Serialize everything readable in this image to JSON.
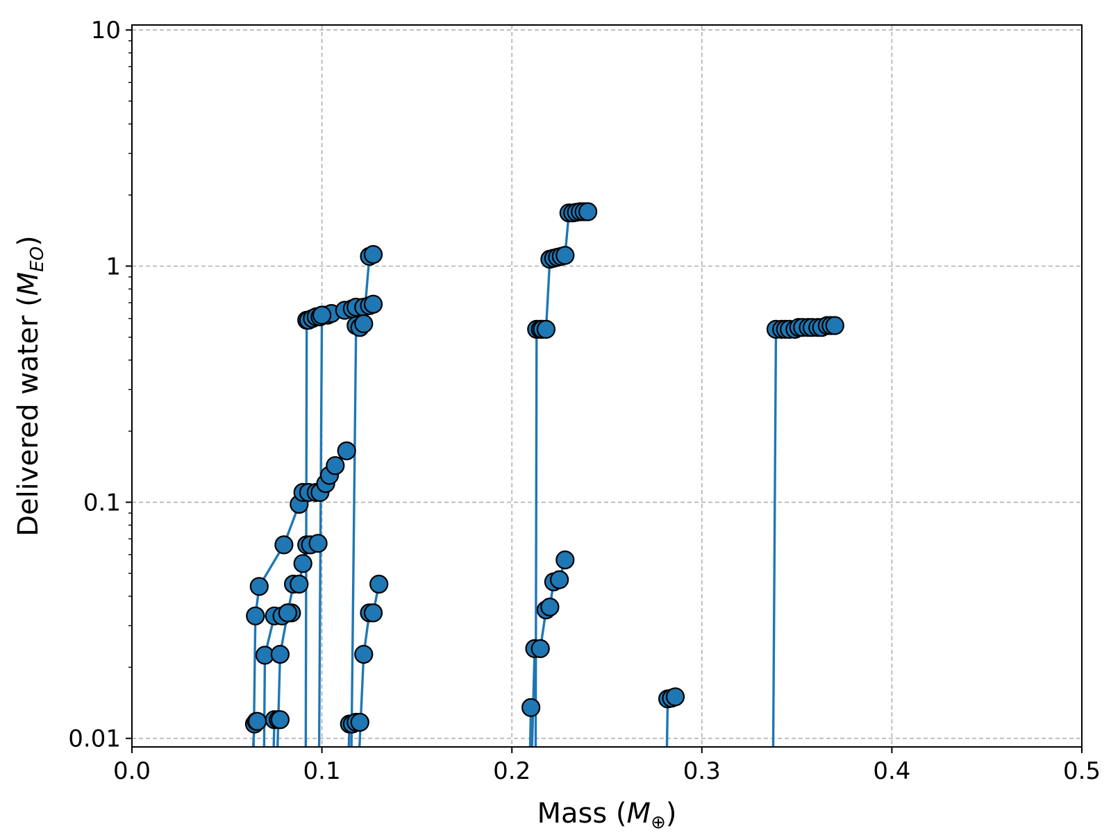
{
  "chart_data": {
    "type": "line",
    "xlabel_text": "Mass (",
    "xlabel_symbol": "M",
    "xlabel_sub": "⊕",
    "xlabel_end": ")",
    "ylabel_text": "Delivered water (",
    "ylabel_symbol": "M",
    "ylabel_sub": "EO",
    "ylabel_end": ")",
    "xlim": [
      0.0,
      0.5
    ],
    "ylim": [
      0.0092,
      10.5
    ],
    "yscale": "log",
    "x_ticks": [
      {
        "value": 0.0,
        "label": "0.0"
      },
      {
        "value": 0.1,
        "label": "0.1"
      },
      {
        "value": 0.2,
        "label": "0.2"
      },
      {
        "value": 0.3,
        "label": "0.3"
      },
      {
        "value": 0.4,
        "label": "0.4"
      },
      {
        "value": 0.5,
        "label": "0.5"
      }
    ],
    "y_ticks": [
      {
        "value": 0.01,
        "label": "0.01"
      },
      {
        "value": 0.1,
        "label": "0.1"
      },
      {
        "value": 1,
        "label": "1"
      },
      {
        "value": 10,
        "label": "10"
      }
    ],
    "grid": true,
    "line_color": "#1f77b4",
    "marker_edge_color": "#000000",
    "series": [
      {
        "from_below": 0.0635,
        "points": [
          [
            0.0645,
            0.0115
          ],
          [
            0.0655,
            0.0118
          ],
          [
            0.066,
            0.0118
          ]
        ]
      },
      {
        "from_below": 0.064,
        "points": [
          [
            0.065,
            0.033
          ],
          [
            0.067,
            0.044
          ],
          [
            0.08,
            0.066
          ],
          [
            0.088,
            0.098
          ],
          [
            0.09,
            0.11
          ],
          [
            0.093,
            0.11
          ],
          [
            0.097,
            0.11
          ],
          [
            0.099,
            0.11
          ],
          [
            0.102,
            0.12
          ],
          [
            0.104,
            0.13
          ],
          [
            0.107,
            0.143
          ],
          [
            0.113,
            0.165
          ]
        ]
      },
      {
        "from_below": 0.0695,
        "points": [
          [
            0.07,
            0.0225
          ],
          [
            0.075,
            0.033
          ],
          [
            0.079,
            0.033
          ],
          [
            0.082,
            0.034
          ],
          [
            0.084,
            0.034
          ]
        ]
      },
      {
        "from_below": 0.0745,
        "points": [
          [
            0.075,
            0.012
          ],
          [
            0.077,
            0.012
          ],
          [
            0.078,
            0.012
          ]
        ]
      },
      {
        "from_below": 0.0765,
        "points": [
          [
            0.078,
            0.0227
          ],
          [
            0.082,
            0.034
          ],
          [
            0.085,
            0.045
          ],
          [
            0.088,
            0.045
          ],
          [
            0.09,
            0.055
          ],
          [
            0.092,
            0.066
          ],
          [
            0.094,
            0.066
          ],
          [
            0.098,
            0.067
          ]
        ]
      },
      {
        "from_below": 0.114,
        "points": [
          [
            0.1145,
            0.0115
          ],
          [
            0.116,
            0.0115
          ],
          [
            0.118,
            0.0117
          ],
          [
            0.12,
            0.0117
          ]
        ]
      },
      {
        "from_below": 0.1195,
        "points": [
          [
            0.122,
            0.0227
          ],
          [
            0.125,
            0.034
          ],
          [
            0.127,
            0.034
          ],
          [
            0.13,
            0.045
          ]
        ]
      },
      {
        "from_below": 0.0915,
        "points": [
          [
            0.092,
            0.59
          ],
          [
            0.093,
            0.59
          ],
          [
            0.095,
            0.6
          ],
          [
            0.097,
            0.61
          ],
          [
            0.099,
            0.61
          ],
          [
            0.101,
            0.62
          ],
          [
            0.103,
            0.62
          ],
          [
            0.105,
            0.63
          ]
        ]
      },
      {
        "from_below": 0.0985,
        "points": [
          [
            0.1,
            0.62
          ],
          [
            0.112,
            0.65
          ],
          [
            0.116,
            0.66
          ],
          [
            0.118,
            0.67
          ],
          [
            0.122,
            0.67
          ],
          [
            0.125,
            0.68
          ],
          [
            0.127,
            0.69
          ]
        ]
      },
      {
        "from_below": 0.1155,
        "points": [
          [
            0.118,
            0.56
          ],
          [
            0.12,
            0.55
          ],
          [
            0.122,
            0.57
          ],
          [
            0.125,
            1.1
          ],
          [
            0.127,
            1.12
          ]
        ]
      },
      {
        "from_below": 0.2095,
        "points": [
          [
            0.21,
            0.0135
          ]
        ]
      },
      {
        "from_below": 0.2105,
        "points": [
          [
            0.212,
            0.024
          ],
          [
            0.215,
            0.024
          ],
          [
            0.218,
            0.035
          ],
          [
            0.22,
            0.036
          ],
          [
            0.222,
            0.046
          ],
          [
            0.225,
            0.047
          ],
          [
            0.228,
            0.057
          ]
        ]
      },
      {
        "from_below": 0.2125,
        "points": [
          [
            0.213,
            0.54
          ],
          [
            0.215,
            0.54
          ],
          [
            0.216,
            0.54
          ],
          [
            0.218,
            0.54
          ],
          [
            0.22,
            1.07
          ],
          [
            0.222,
            1.08
          ],
          [
            0.224,
            1.09
          ],
          [
            0.226,
            1.1
          ],
          [
            0.228,
            1.11
          ],
          [
            0.23,
            1.68
          ],
          [
            0.232,
            1.68
          ],
          [
            0.234,
            1.69
          ],
          [
            0.236,
            1.7
          ],
          [
            0.238,
            1.7
          ],
          [
            0.24,
            1.7
          ]
        ]
      },
      {
        "from_below": 0.2815,
        "points": [
          [
            0.282,
            0.0147
          ],
          [
            0.284,
            0.0148
          ],
          [
            0.286,
            0.015
          ]
        ]
      },
      {
        "from_below": 0.3375,
        "points": [
          [
            0.339,
            0.54
          ],
          [
            0.342,
            0.54
          ],
          [
            0.344,
            0.54
          ],
          [
            0.346,
            0.54
          ],
          [
            0.349,
            0.54
          ],
          [
            0.351,
            0.55
          ],
          [
            0.353,
            0.55
          ],
          [
            0.356,
            0.55
          ],
          [
            0.358,
            0.55
          ],
          [
            0.361,
            0.55
          ],
          [
            0.363,
            0.55
          ],
          [
            0.366,
            0.56
          ],
          [
            0.368,
            0.56
          ],
          [
            0.37,
            0.56
          ]
        ]
      }
    ]
  }
}
